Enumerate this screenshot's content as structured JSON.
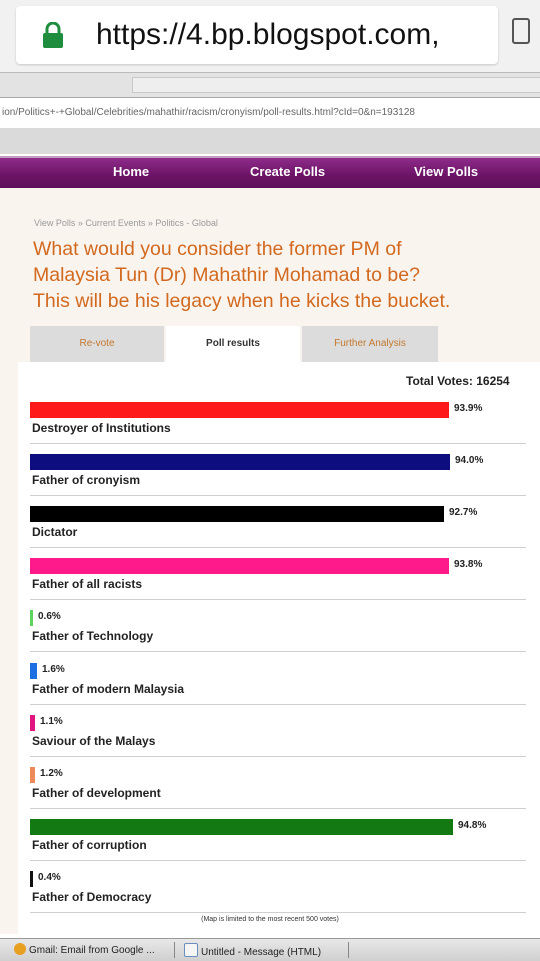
{
  "browser": {
    "url": "https://4.bp.blogspot.com,",
    "chrome_fragment": "ion/Politics+-+Global/Celebrities/mahathir/racism/cronyism/poll-results.html?cId=0&n=193128",
    "address_text": "ion/Politics+-+Global/Celebrities/mahathir/racism/cronyism/poll-results.html?cId=0&n=193128"
  },
  "nav": {
    "home": "Home",
    "create": "Create Polls",
    "view": "View Polls"
  },
  "breadcrumb": "View Polls » Current Events » Politics - Global",
  "question": {
    "line1": "What would you consider the former PM of",
    "line2": "Malaysia Tun (Dr) Mahathir Mohamad to be?",
    "line3": "This will be his legacy when he kicks the bucket."
  },
  "tabs": {
    "revote": "Re-vote",
    "results": "Poll results",
    "analysis": "Further Analysis"
  },
  "total_votes": "Total Votes: 16254",
  "options": [
    {
      "label": "Destroyer of Institutions",
      "pct_text": "93.9%",
      "value": 93.9,
      "color": "#ff1a1a"
    },
    {
      "label": "Father of cronyism",
      "pct_text": "94.0%",
      "value": 94.0,
      "color": "#0d0d80"
    },
    {
      "label": "Dictator",
      "pct_text": "92.7%",
      "value": 92.7,
      "color": "#000000"
    },
    {
      "label": "Father of all racists",
      "pct_text": "93.8%",
      "value": 93.8,
      "color": "#ff1a8c"
    },
    {
      "label": "Father of Technology",
      "pct_text": "0.6%",
      "value": 0.6,
      "color": "#5fd35f"
    },
    {
      "label": "Father of modern Malaysia",
      "pct_text": "1.6%",
      "value": 1.6,
      "color": "#1c6fe0"
    },
    {
      "label": "Saviour of the Malays",
      "pct_text": "1.1%",
      "value": 1.1,
      "color": "#e0157f"
    },
    {
      "label": "Father of development",
      "pct_text": "1.2%",
      "value": 1.2,
      "color": "#ee8a5a"
    },
    {
      "label": "Father of corruption",
      "pct_text": "94.8%",
      "value": 94.8,
      "color": "#137a13"
    },
    {
      "label": "Father of Democracy",
      "pct_text": "0.4%",
      "value": 0.4,
      "color": "#111111"
    }
  ],
  "note": "(Map is limited to the most recent 500 votes)",
  "taskbar": {
    "gmail": "Gmail: Email from Google ...",
    "message": "Untitled - Message (HTML)"
  }
}
